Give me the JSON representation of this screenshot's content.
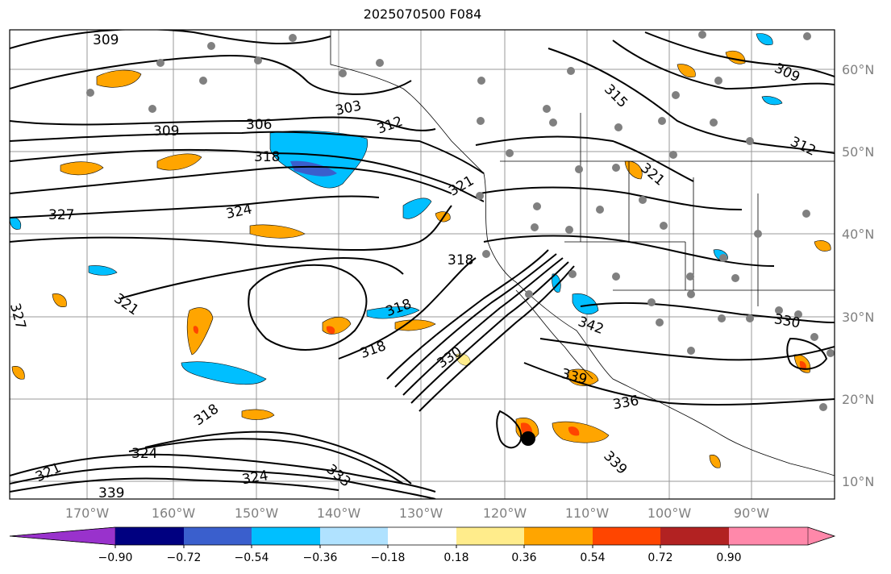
{
  "title": "2025070500 F084",
  "lat_labels": [
    "60°N",
    "50°N",
    "40°N",
    "30°N",
    "20°N",
    "10°N"
  ],
  "lon_labels": [
    "170°W",
    "160°W",
    "150°W",
    "140°W",
    "130°W",
    "120°W",
    "110°W",
    "100°W",
    "90°W"
  ],
  "colorbar": {
    "ticks": [
      "−0.90",
      "−0.72",
      "−0.54",
      "−0.36",
      "−0.18",
      "0.18",
      "0.36",
      "0.54",
      "0.72",
      "0.90"
    ],
    "colors": [
      "#9932CC",
      "#000080",
      "#3A5FCD",
      "#00BFFF",
      "#B0E2FF",
      "#FFFFFF",
      "#FFEC8B",
      "#FFA500",
      "#FF4500",
      "#B22222",
      "#FF88AA"
    ]
  },
  "contour_labels": [
    {
      "text": "309"
    },
    {
      "text": "309"
    },
    {
      "text": "306"
    },
    {
      "text": "303"
    },
    {
      "text": "312"
    },
    {
      "text": "318"
    },
    {
      "text": "324"
    },
    {
      "text": "327"
    },
    {
      "text": "327"
    },
    {
      "text": "321"
    },
    {
      "text": "324"
    },
    {
      "text": "318"
    },
    {
      "text": "318"
    },
    {
      "text": "321"
    },
    {
      "text": "318"
    },
    {
      "text": "318"
    },
    {
      "text": "330"
    },
    {
      "text": "324"
    },
    {
      "text": "321"
    },
    {
      "text": "330"
    },
    {
      "text": "333"
    },
    {
      "text": "339"
    },
    {
      "text": "339"
    },
    {
      "text": "336"
    },
    {
      "text": "339"
    },
    {
      "text": "342"
    },
    {
      "text": "315"
    },
    {
      "text": "321"
    },
    {
      "text": "309"
    },
    {
      "text": "312"
    },
    {
      "text": "330"
    }
  ]
}
